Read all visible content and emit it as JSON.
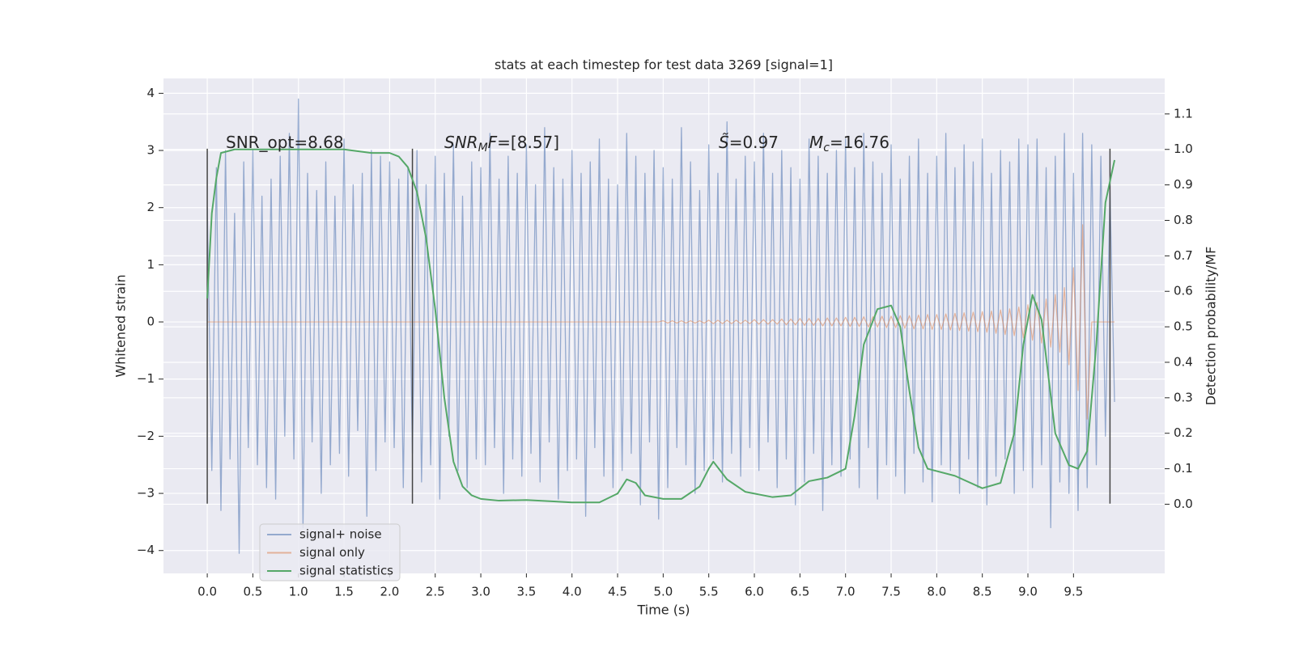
{
  "chart_data": {
    "type": "line",
    "title": "stats at each timestep for test data 3269 [signal=1]",
    "xlabel": "Time (s)",
    "ylabel": "Whitened strain",
    "y2label": "Detection probability/MF",
    "xlim": [
      -0.48,
      10.5
    ],
    "ylim": [
      -4.4,
      4.26
    ],
    "y2lim": [
      -0.195,
      1.2
    ],
    "xticks": [
      {
        "value": 0.0,
        "label": "0.0"
      },
      0.5,
      {
        "value": 1.0,
        "label": "1.0"
      },
      1.5,
      {
        "value": 2.0,
        "label": "2.0"
      },
      2.5,
      {
        "value": 3.0,
        "label": "3.0"
      },
      3.5,
      {
        "value": 4.0,
        "label": "4.0"
      },
      4.5,
      {
        "value": 5.0,
        "label": "5.0"
      },
      5.5,
      {
        "value": 6.0,
        "label": "6.0"
      },
      6.5,
      {
        "value": 7.0,
        "label": "7.0"
      },
      7.5,
      {
        "value": 8.0,
        "label": "8.0"
      },
      8.5,
      {
        "value": 9.0,
        "label": "9.0"
      },
      9.5
    ],
    "yticks": [
      {
        "value": -4,
        "label": "−4"
      },
      {
        "value": -3,
        "label": "−3"
      },
      {
        "value": -2,
        "label": "−2"
      },
      {
        "value": -1,
        "label": "−1"
      },
      0,
      1,
      2,
      3,
      4
    ],
    "y2ticks": [
      {
        "value": 0.0,
        "label": "0.0"
      },
      0.1,
      0.2,
      0.3,
      0.4,
      0.5,
      0.6,
      0.7,
      0.8,
      0.9,
      {
        "value": 1.0,
        "label": "1.0"
      },
      1.1
    ],
    "grid": true,
    "x": [
      0,
      0.05,
      0.1,
      0.15,
      0.2,
      0.25,
      0.3,
      0.35,
      0.4,
      0.45,
      0.5,
      0.55,
      0.6,
      0.65,
      0.7,
      0.75,
      0.8,
      0.85,
      0.9,
      0.95,
      1,
      1.05,
      1.1,
      1.15,
      1.2,
      1.25,
      1.3,
      1.35,
      1.4,
      1.45,
      1.5,
      1.55,
      1.6,
      1.65,
      1.7,
      1.75,
      1.8,
      1.85,
      1.9,
      1.95,
      2,
      2.05,
      2.1,
      2.15,
      2.2,
      2.25,
      2.3,
      2.35,
      2.4,
      2.45,
      2.5,
      2.55,
      2.6,
      2.65,
      2.7,
      2.75,
      2.8,
      2.85,
      2.9,
      2.95,
      3,
      3.05,
      3.1,
      3.15,
      3.2,
      3.25,
      3.3,
      3.35,
      3.4,
      3.45,
      3.5,
      3.55,
      3.6,
      3.65,
      3.7,
      3.75,
      3.8,
      3.85,
      3.9,
      3.95,
      4,
      4.05,
      4.1,
      4.15,
      4.2,
      4.25,
      4.3,
      4.35,
      4.4,
      4.45,
      4.5,
      4.55,
      4.6,
      4.65,
      4.7,
      4.75,
      4.8,
      4.85,
      4.9,
      4.95,
      5,
      5.05,
      5.1,
      5.15,
      5.2,
      5.25,
      5.3,
      5.35,
      5.4,
      5.45,
      5.5,
      5.55,
      5.6,
      5.65,
      5.7,
      5.75,
      5.8,
      5.85,
      5.9,
      5.95,
      6,
      6.05,
      6.1,
      6.15,
      6.2,
      6.25,
      6.3,
      6.35,
      6.4,
      6.45,
      6.5,
      6.55,
      6.6,
      6.65,
      6.7,
      6.75,
      6.8,
      6.85,
      6.9,
      6.95,
      7,
      7.05,
      7.1,
      7.15,
      7.2,
      7.25,
      7.3,
      7.35,
      7.4,
      7.45,
      7.5,
      7.55,
      7.6,
      7.65,
      7.7,
      7.75,
      7.8,
      7.85,
      7.9,
      7.95,
      8,
      8.05,
      8.1,
      8.15,
      8.2,
      8.25,
      8.3,
      8.35,
      8.4,
      8.45,
      8.5,
      8.55,
      8.6,
      8.65,
      8.7,
      8.75,
      8.8,
      8.85,
      8.9,
      8.95,
      9,
      9.05,
      9.1,
      9.15,
      9.2,
      9.25,
      9.3,
      9.35,
      9.4,
      9.45,
      9.5,
      9.55,
      9.6,
      9.65,
      9.7,
      9.75,
      9.8,
      9.85,
      9.9,
      9.95
    ],
    "series": [
      {
        "name": "signal+ noise",
        "color": "#4c72b0",
        "values": [
          2.0,
          -2.6,
          2.7,
          -3.3,
          3.0,
          -2.4,
          1.9,
          -4.05,
          2.8,
          -2.2,
          3.0,
          -2.5,
          2.2,
          -2.9,
          2.5,
          -3.1,
          2.9,
          -2.0,
          3.3,
          -2.4,
          3.9,
          -3.6,
          2.6,
          -2.1,
          2.3,
          -3.0,
          2.8,
          -2.5,
          2.2,
          -2.3,
          3.2,
          -2.7,
          2.4,
          -1.9,
          2.6,
          -3.4,
          3.0,
          -2.6,
          2.9,
          -2.1,
          2.8,
          -2.2,
          2.5,
          -2.9,
          2.7,
          -2.3,
          3.0,
          -2.8,
          2.4,
          -2.5,
          2.9,
          -3.1,
          2.6,
          -2.0,
          3.1,
          -2.6,
          2.2,
          -2.9,
          2.8,
          -2.4,
          2.7,
          -2.5,
          3.3,
          -2.2,
          2.5,
          -3.0,
          2.9,
          -2.4,
          2.6,
          -2.7,
          3.1,
          -2.3,
          2.4,
          -2.8,
          3.4,
          -2.1,
          2.7,
          -3.1,
          2.5,
          -2.6,
          3.0,
          -2.4,
          2.6,
          -3.4,
          2.8,
          -2.2,
          3.2,
          -2.7,
          2.5,
          -2.9,
          2.4,
          -2.6,
          3.3,
          -2.3,
          2.9,
          -3.2,
          2.6,
          -2.1,
          3.0,
          -3.45,
          2.7,
          -2.9,
          2.5,
          -2.2,
          3.4,
          -2.5,
          2.8,
          -3.0,
          2.3,
          -2.6,
          3.1,
          -2.4,
          2.6,
          -2.8,
          3.5,
          -2.3,
          2.5,
          -2.7,
          2.9,
          -2.2,
          2.8,
          -2.6,
          3.3,
          -2.1,
          2.6,
          -2.9,
          3.0,
          -2.4,
          2.7,
          -3.2,
          2.5,
          -2.8,
          3.2,
          -2.3,
          2.9,
          -3.3,
          2.6,
          -2.5,
          3.0,
          -2.7,
          3.2,
          -2.4,
          2.7,
          -2.9,
          3.3,
          -2.2,
          2.8,
          -3.1,
          2.6,
          -2.5,
          3.1,
          -2.7,
          2.5,
          -3.0,
          2.9,
          -2.3,
          3.2,
          -2.8,
          2.6,
          -3.15,
          2.9,
          -2.5,
          3.3,
          -2.6,
          2.7,
          -3.0,
          3.1,
          -2.4,
          2.8,
          -2.9,
          3.2,
          -3.2,
          2.6,
          -2.7,
          3.0,
          -2.4,
          2.8,
          -3.0,
          3.2,
          -2.6,
          3.1,
          -2.9,
          3.2,
          -2.5,
          2.7,
          -3.6,
          2.9,
          -2.8,
          3.3,
          -3.0,
          2.6,
          -3.3,
          3.3,
          -2.9,
          3.1,
          -2.5,
          2.9,
          -2.0,
          2.3,
          -1.4
        ]
      },
      {
        "name": "signal only",
        "color": "#dd8452",
        "values": [
          0,
          0,
          0,
          0,
          0,
          0,
          0,
          0,
          0,
          0,
          0,
          0,
          0,
          0,
          0,
          0,
          0,
          0,
          0,
          0,
          0,
          0,
          0,
          0,
          0,
          0,
          0,
          0,
          0,
          0,
          0,
          0,
          0,
          0,
          0,
          0,
          0,
          0,
          0,
          0,
          0,
          0,
          0,
          0,
          0,
          0,
          0,
          0,
          0,
          0,
          0,
          0,
          0,
          0,
          0,
          0,
          0,
          0,
          0,
          0,
          0,
          0,
          0,
          0,
          0,
          0,
          0,
          0,
          0,
          0,
          0,
          0,
          0,
          0,
          0,
          0,
          0,
          0,
          0,
          0,
          0,
          0,
          0,
          0,
          0,
          0,
          0,
          0,
          0,
          0,
          0,
          0,
          0,
          0,
          0,
          0,
          0,
          0,
          0,
          0,
          0.02,
          -0.02,
          0.02,
          -0.02,
          0.02,
          -0.02,
          0.02,
          -0.02,
          0.02,
          -0.02,
          0.03,
          -0.03,
          0.03,
          -0.03,
          0.03,
          -0.03,
          0.03,
          -0.03,
          0.03,
          -0.03,
          0.04,
          -0.04,
          0.04,
          -0.04,
          0.04,
          -0.04,
          0.05,
          -0.05,
          0.05,
          -0.05,
          0.06,
          -0.06,
          0.06,
          -0.06,
          0.06,
          -0.07,
          0.07,
          -0.07,
          0.07,
          -0.07,
          0.08,
          -0.08,
          0.08,
          -0.08,
          0.09,
          -0.09,
          0.09,
          -0.09,
          0.1,
          -0.1,
          0.1,
          -0.1,
          0.11,
          -0.11,
          0.11,
          -0.12,
          0.12,
          -0.12,
          0.13,
          -0.13,
          0.13,
          -0.13,
          0.14,
          -0.14,
          0.15,
          -0.15,
          0.16,
          -0.16,
          0.17,
          -0.17,
          0.18,
          -0.18,
          0.19,
          -0.2,
          0.21,
          -0.22,
          0.23,
          -0.24,
          0.26,
          -0.28,
          0.3,
          -0.32,
          0.34,
          -0.37,
          0.4,
          -0.44,
          0.48,
          -0.53,
          0.6,
          -0.75,
          0.95,
          -1.2,
          1.7,
          -1.7,
          0,
          0,
          0,
          0,
          0,
          0
        ]
      },
      {
        "name": "signal statistics",
        "color": "#55a868",
        "axis": "y2",
        "x": [
          0,
          0.05,
          0.1,
          0.15,
          0.3,
          0.5,
          1.0,
          1.5,
          1.8,
          2.0,
          2.1,
          2.2,
          2.3,
          2.4,
          2.5,
          2.6,
          2.7,
          2.8,
          2.9,
          3.0,
          3.2,
          3.5,
          3.8,
          4.0,
          4.3,
          4.5,
          4.6,
          4.7,
          4.8,
          5.0,
          5.2,
          5.4,
          5.5,
          5.55,
          5.7,
          5.9,
          6.2,
          6.4,
          6.6,
          6.8,
          7.0,
          7.1,
          7.2,
          7.35,
          7.5,
          7.6,
          7.7,
          7.8,
          7.9,
          8.2,
          8.5,
          8.7,
          8.85,
          8.95,
          9.05,
          9.15,
          9.3,
          9.45,
          9.55,
          9.65,
          9.75,
          9.85,
          9.95
        ],
        "values": [
          0.58,
          0.82,
          0.92,
          0.99,
          1.0,
          1.0,
          1.0,
          1.0,
          0.99,
          0.99,
          0.98,
          0.95,
          0.88,
          0.75,
          0.55,
          0.3,
          0.12,
          0.05,
          0.025,
          0.015,
          0.01,
          0.012,
          0.008,
          0.005,
          0.005,
          0.03,
          0.07,
          0.06,
          0.025,
          0.015,
          0.015,
          0.05,
          0.1,
          0.12,
          0.07,
          0.035,
          0.02,
          0.025,
          0.065,
          0.075,
          0.1,
          0.25,
          0.45,
          0.55,
          0.56,
          0.5,
          0.32,
          0.16,
          0.1,
          0.08,
          0.045,
          0.06,
          0.2,
          0.45,
          0.59,
          0.52,
          0.2,
          0.11,
          0.1,
          0.15,
          0.45,
          0.85,
          0.97
        ]
      }
    ],
    "vlines": {
      "x": [
        0,
        2.25,
        9.9
      ],
      "ymin": -3.18,
      "ymax": 3.03,
      "color": "#444444"
    },
    "annotations": [
      [
        {
          "text": "SNR_opt=8.68"
        }
      ],
      [
        {
          "text": "SNR",
          "style": "italic"
        },
        {
          "text": "M",
          "style": "sub"
        },
        {
          "text": "F",
          "style": "italic"
        },
        {
          "text": "=[8.57]"
        }
      ],
      [
        {
          "text": "S̃",
          "style": "italic"
        },
        {
          "text": "=0.97"
        }
      ],
      [
        {
          "text": "M",
          "style": "italic"
        },
        {
          "text": "c",
          "style": "sub"
        },
        {
          "text": "=16.76"
        }
      ]
    ],
    "legend": "lower left"
  }
}
